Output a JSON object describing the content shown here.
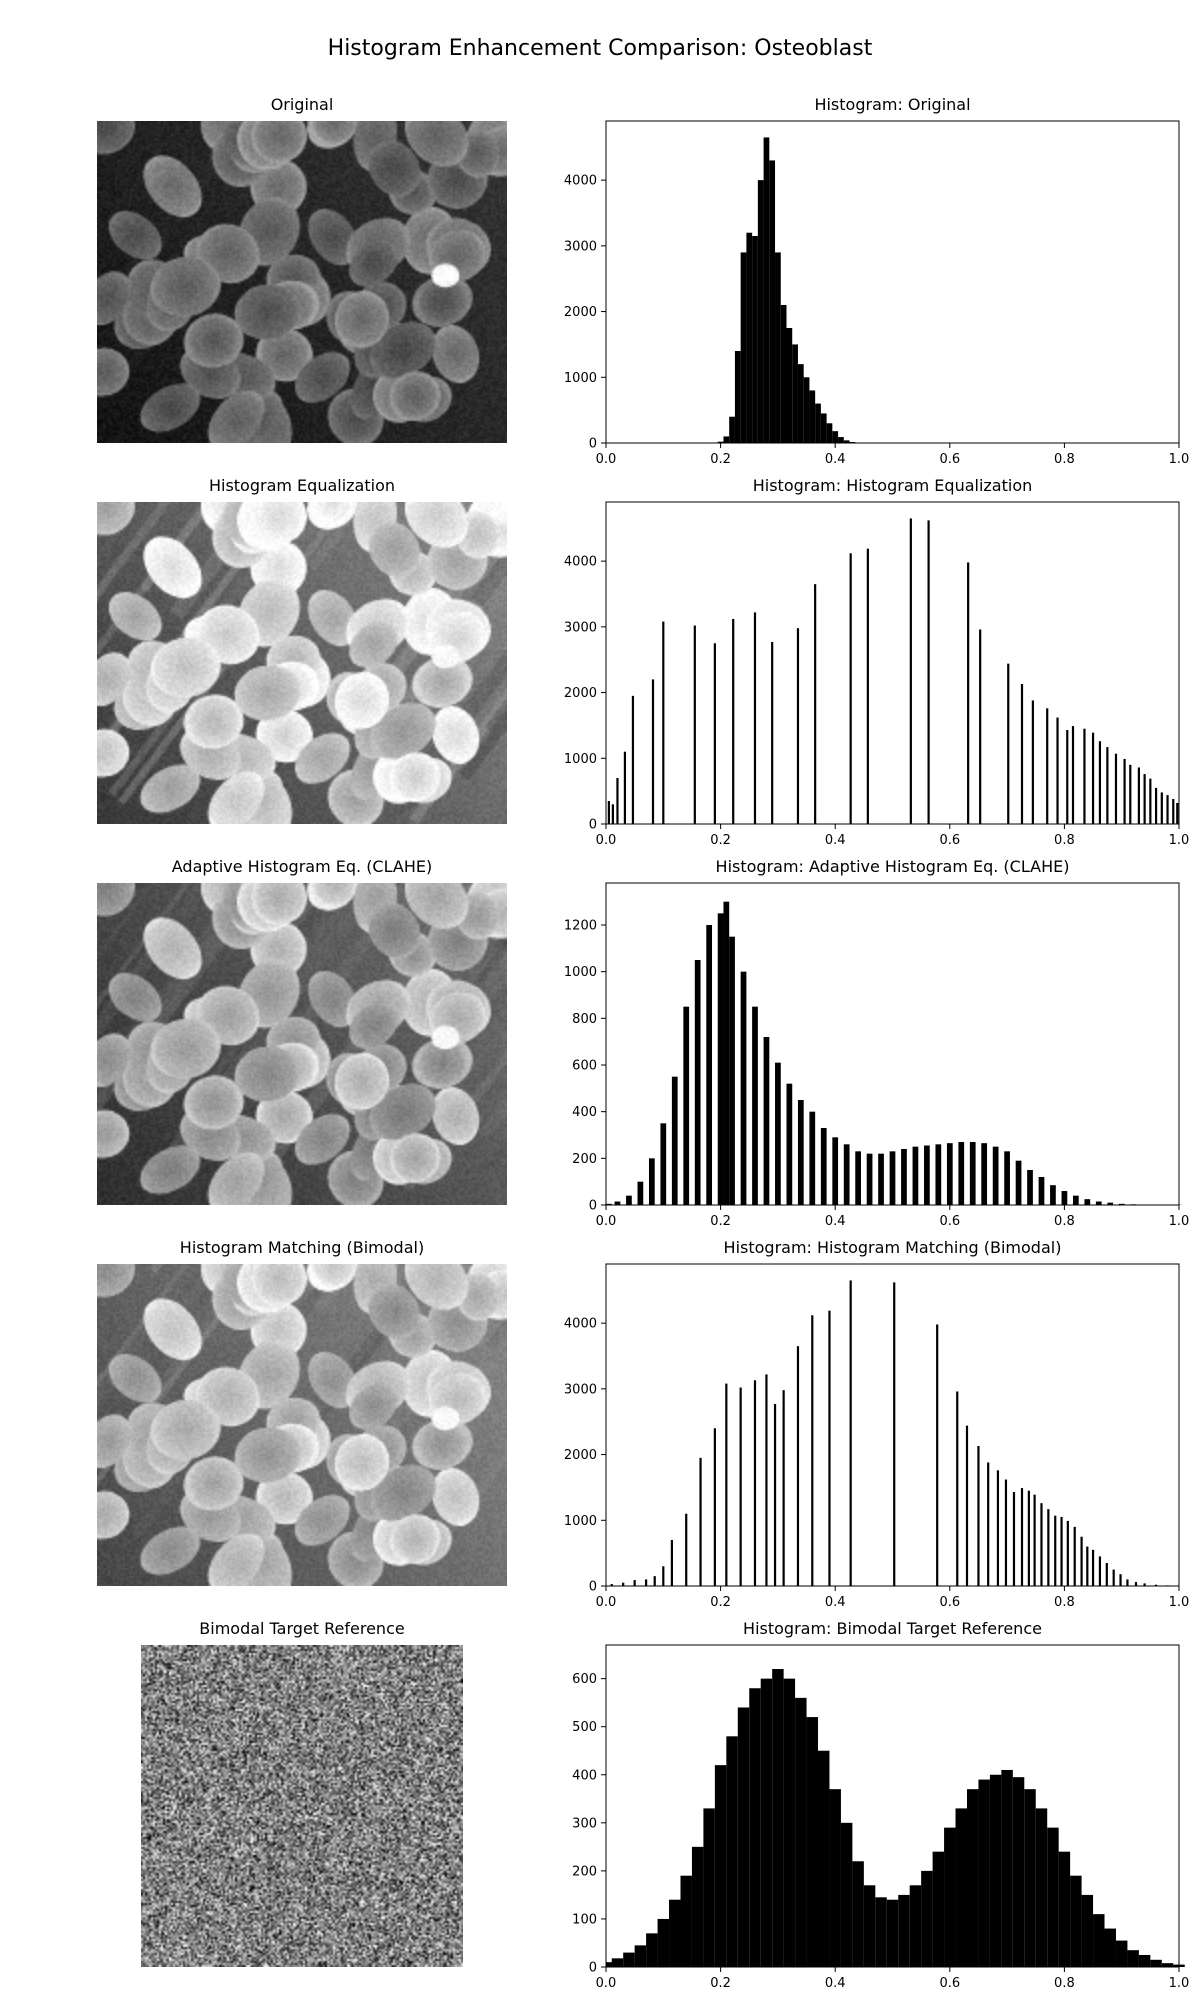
{
  "figure": {
    "title": "Histogram Enhancement Comparison: Osteoblast"
  },
  "rows": [
    {
      "image_title": "Original",
      "hist_title": "Histogram: Original",
      "image_style": "original"
    },
    {
      "image_title": "Histogram Equalization",
      "hist_title": "Histogram: Histogram Equalization",
      "image_style": "equalized"
    },
    {
      "image_title": "Adaptive Histogram Eq. (CLAHE)",
      "hist_title": "Histogram: Adaptive Histogram Eq. (CLAHE)",
      "image_style": "clahe"
    },
    {
      "image_title": "Histogram Matching (Bimodal)",
      "hist_title": "Histogram: Histogram Matching (Bimodal)",
      "image_style": "matched"
    },
    {
      "image_title": "Bimodal Target Reference",
      "hist_title": "Histogram: Bimodal Target Reference",
      "image_style": "noise"
    }
  ],
  "chart_data": [
    {
      "type": "bar",
      "title": "Histogram: Original",
      "xlim": [
        0.0,
        1.0
      ],
      "ylim": [
        0,
        4900
      ],
      "xticks": [
        "0.0",
        "0.2",
        "0.4",
        "0.6",
        "0.8",
        "1.0"
      ],
      "yticks": [
        0,
        1000,
        2000,
        3000,
        4000
      ],
      "bar_color": "#000000",
      "approx_shape": "single peak ~4650 at x≈0.28, support 0.20–0.44",
      "x": [
        0.2,
        0.21,
        0.22,
        0.23,
        0.24,
        0.25,
        0.26,
        0.27,
        0.28,
        0.29,
        0.3,
        0.31,
        0.32,
        0.33,
        0.34,
        0.35,
        0.36,
        0.37,
        0.38,
        0.39,
        0.4,
        0.41,
        0.42,
        0.43,
        0.44
      ],
      "values": [
        20,
        100,
        400,
        1400,
        2900,
        3200,
        3150,
        4000,
        4650,
        4300,
        2900,
        2100,
        1750,
        1500,
        1200,
        1000,
        800,
        600,
        450,
        300,
        180,
        90,
        40,
        15,
        5
      ]
    },
    {
      "type": "bar",
      "title": "Histogram: Histogram Equalization",
      "xlim": [
        0.0,
        1.0
      ],
      "ylim": [
        0,
        4900
      ],
      "xticks": [
        "0.0",
        "0.2",
        "0.4",
        "0.6",
        "0.8",
        "1.0"
      ],
      "yticks": [
        0,
        1000,
        2000,
        3000,
        4000
      ],
      "bar_color": "#000000",
      "approx_shape": "sparse comb of spikes",
      "x": [
        0.005,
        0.012,
        0.02,
        0.033,
        0.047,
        0.082,
        0.1,
        0.155,
        0.19,
        0.222,
        0.26,
        0.29,
        0.335,
        0.365,
        0.427,
        0.457,
        0.532,
        0.563,
        0.632,
        0.653,
        0.702,
        0.726,
        0.745,
        0.77,
        0.788,
        0.805,
        0.815,
        0.835,
        0.85,
        0.862,
        0.875,
        0.89,
        0.905,
        0.915,
        0.93,
        0.94,
        0.95,
        0.96,
        0.97,
        0.98,
        0.99,
        0.997
      ],
      "values": [
        350,
        300,
        700,
        1100,
        1950,
        2200,
        3080,
        3020,
        2750,
        3120,
        3220,
        2770,
        2980,
        3650,
        4120,
        4190,
        4650,
        4620,
        3980,
        2960,
        2440,
        2130,
        1880,
        1760,
        1620,
        1430,
        1490,
        1450,
        1390,
        1260,
        1170,
        1070,
        990,
        900,
        860,
        760,
        690,
        550,
        480,
        440,
        380,
        320
      ]
    },
    {
      "type": "bar",
      "title": "Histogram: Adaptive Histogram Eq. (CLAHE)",
      "xlim": [
        0.0,
        1.0
      ],
      "ylim": [
        0,
        1380
      ],
      "xticks": [
        "0.0",
        "0.2",
        "0.4",
        "0.6",
        "0.8",
        "1.0"
      ],
      "yticks": [
        0,
        200,
        400,
        600,
        800,
        1000,
        1200
      ],
      "bar_color": "#000000",
      "approx_shape": "main peak ~1300 at x≈0.21, plateau ~270 near x≈0.6",
      "x": [
        0.0,
        0.02,
        0.04,
        0.06,
        0.08,
        0.1,
        0.12,
        0.14,
        0.16,
        0.18,
        0.2,
        0.21,
        0.22,
        0.24,
        0.26,
        0.28,
        0.3,
        0.32,
        0.34,
        0.36,
        0.38,
        0.4,
        0.42,
        0.44,
        0.46,
        0.48,
        0.5,
        0.52,
        0.54,
        0.56,
        0.58,
        0.6,
        0.62,
        0.64,
        0.66,
        0.68,
        0.7,
        0.72,
        0.74,
        0.76,
        0.78,
        0.8,
        0.82,
        0.84,
        0.86,
        0.88,
        0.9,
        0.92,
        0.94,
        0.96,
        0.98,
        1.0
      ],
      "values": [
        5,
        15,
        40,
        100,
        200,
        350,
        550,
        850,
        1050,
        1200,
        1250,
        1300,
        1150,
        1000,
        850,
        720,
        610,
        520,
        450,
        400,
        330,
        290,
        260,
        230,
        220,
        220,
        230,
        240,
        250,
        255,
        260,
        265,
        270,
        270,
        265,
        250,
        230,
        190,
        150,
        120,
        85,
        60,
        40,
        25,
        15,
        10,
        5,
        3,
        2,
        2,
        1,
        1
      ]
    },
    {
      "type": "bar",
      "title": "Histogram: Histogram Matching (Bimodal)",
      "xlim": [
        0.0,
        1.0
      ],
      "ylim": [
        0,
        4900
      ],
      "xticks": [
        "0.0",
        "0.2",
        "0.4",
        "0.6",
        "0.8",
        "1.0"
      ],
      "yticks": [
        0,
        1000,
        2000,
        3000,
        4000
      ],
      "bar_color": "#000000",
      "approx_shape": "sparse comb of spikes",
      "x": [
        0.01,
        0.03,
        0.05,
        0.07,
        0.085,
        0.1,
        0.115,
        0.14,
        0.165,
        0.19,
        0.21,
        0.235,
        0.26,
        0.28,
        0.295,
        0.31,
        0.335,
        0.36,
        0.39,
        0.427,
        0.503,
        0.578,
        0.613,
        0.63,
        0.65,
        0.667,
        0.684,
        0.698,
        0.712,
        0.726,
        0.738,
        0.748,
        0.76,
        0.772,
        0.784,
        0.795,
        0.806,
        0.818,
        0.83,
        0.84,
        0.85,
        0.862,
        0.874,
        0.886,
        0.898,
        0.91,
        0.925,
        0.94,
        0.96,
        0.98
      ],
      "values": [
        30,
        50,
        90,
        100,
        150,
        300,
        700,
        1100,
        1950,
        2400,
        3080,
        3020,
        3130,
        3220,
        2770,
        2980,
        3650,
        4120,
        4190,
        4650,
        4620,
        3980,
        2960,
        2440,
        2130,
        1880,
        1760,
        1620,
        1430,
        1490,
        1450,
        1390,
        1260,
        1170,
        1070,
        1050,
        990,
        900,
        750,
        600,
        550,
        450,
        350,
        250,
        180,
        100,
        60,
        40,
        20,
        10
      ]
    },
    {
      "type": "bar",
      "title": "Histogram: Bimodal Target Reference",
      "xlim": [
        0.0,
        1.0
      ],
      "ylim": [
        0,
        670
      ],
      "xticks": [
        "0.0",
        "0.2",
        "0.4",
        "0.6",
        "0.8",
        "1.0"
      ],
      "yticks": [
        0,
        100,
        200,
        300,
        400,
        500,
        600
      ],
      "bar_color": "#000000",
      "approx_shape": "two peaks: ~620 at x≈0.30 and ~410 at x≈0.70",
      "x": [
        0.0,
        0.02,
        0.04,
        0.06,
        0.08,
        0.1,
        0.12,
        0.14,
        0.16,
        0.18,
        0.2,
        0.22,
        0.24,
        0.26,
        0.28,
        0.3,
        0.32,
        0.34,
        0.36,
        0.38,
        0.4,
        0.42,
        0.44,
        0.46,
        0.48,
        0.5,
        0.52,
        0.54,
        0.56,
        0.58,
        0.6,
        0.62,
        0.64,
        0.66,
        0.68,
        0.7,
        0.72,
        0.74,
        0.76,
        0.78,
        0.8,
        0.82,
        0.84,
        0.86,
        0.88,
        0.9,
        0.92,
        0.94,
        0.96,
        0.98,
        1.0
      ],
      "values": [
        10,
        18,
        30,
        45,
        70,
        100,
        140,
        190,
        250,
        330,
        420,
        480,
        540,
        580,
        600,
        620,
        600,
        560,
        520,
        450,
        370,
        300,
        220,
        170,
        145,
        140,
        150,
        170,
        200,
        240,
        290,
        330,
        370,
        390,
        400,
        410,
        395,
        370,
        330,
        290,
        240,
        190,
        150,
        110,
        80,
        55,
        35,
        25,
        15,
        8,
        5
      ]
    }
  ]
}
